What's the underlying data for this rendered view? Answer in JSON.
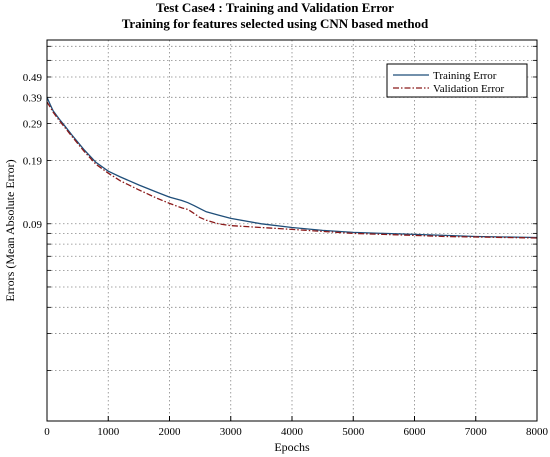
{
  "chart_data": {
    "type": "line",
    "title": "Test Case4 : Training and Validation Error",
    "subtitle": "Training for features selected using CNN based method",
    "xlabel": "Epochs",
    "ylabel": "Errors (Mean Absolute Error)",
    "xlim": [
      0,
      8000
    ],
    "x_ticks": [
      0,
      1000,
      2000,
      3000,
      4000,
      5000,
      6000,
      7000,
      8000
    ],
    "y_scale": "log",
    "y_tick_labels": [
      "0.49",
      "0.39",
      "0.29",
      "0.19",
      "0.09"
    ],
    "grid": true,
    "legend_position": "top-right",
    "series": [
      {
        "name": "Training Error",
        "style": "solid",
        "color": "#1f4e79",
        "x": [
          0,
          50,
          100,
          200,
          300,
          400,
          600,
          800,
          1000,
          1200,
          1500,
          1800,
          2000,
          2200,
          2300,
          2400,
          2500,
          2600,
          2800,
          3000,
          3500,
          4000,
          4500,
          5000,
          5500,
          6000,
          6500,
          7000,
          7500,
          8000
        ],
        "y": [
          0.4,
          0.37,
          0.345,
          0.315,
          0.29,
          0.266,
          0.226,
          0.196,
          0.178,
          0.167,
          0.153,
          0.141,
          0.134,
          0.129,
          0.126,
          0.122,
          0.118,
          0.114,
          0.11,
          0.106,
          0.1,
          0.096,
          0.093,
          0.091,
          0.09,
          0.089,
          0.088,
          0.087,
          0.0865,
          0.086
        ]
      },
      {
        "name": "Validation Error",
        "style": "dashdot",
        "color": "#8b1a1a",
        "x": [
          0,
          50,
          100,
          200,
          300,
          400,
          600,
          800,
          1000,
          1200,
          1500,
          1800,
          2000,
          2200,
          2300,
          2400,
          2500,
          2600,
          2800,
          3000,
          3500,
          4000,
          4500,
          5000,
          5500,
          6000,
          6500,
          7000,
          7500,
          8000
        ],
        "y": [
          0.38,
          0.36,
          0.34,
          0.31,
          0.285,
          0.262,
          0.222,
          0.192,
          0.174,
          0.16,
          0.145,
          0.132,
          0.125,
          0.119,
          0.117,
          0.112,
          0.107,
          0.104,
          0.1,
          0.098,
          0.096,
          0.094,
          0.092,
          0.09,
          0.089,
          0.088,
          0.087,
          0.0865,
          0.086,
          0.0855
        ]
      }
    ]
  }
}
